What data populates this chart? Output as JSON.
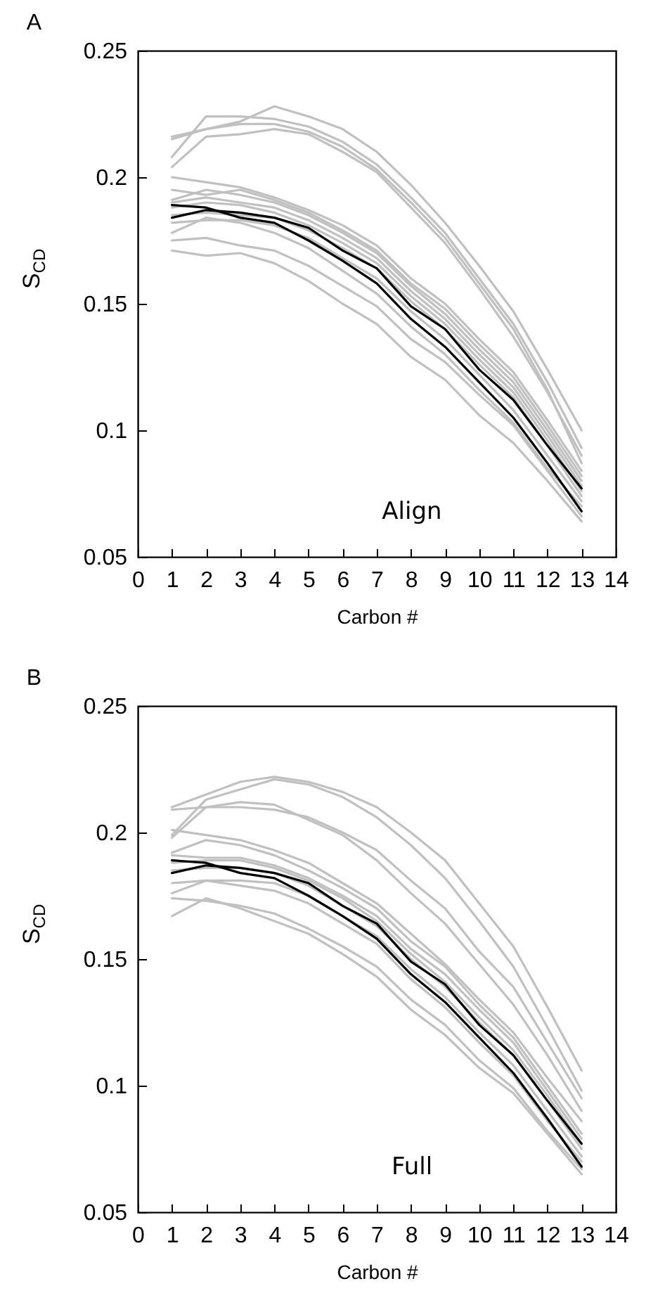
{
  "chart_data": [
    {
      "type": "line",
      "title": "A",
      "xlabel": "Carbon #",
      "ylabel": "S$_{CD}$",
      "annotations": [
        "Align"
      ],
      "x": [
        1,
        2,
        3,
        4,
        5,
        6,
        7,
        8,
        9,
        10,
        11,
        12,
        13
      ],
      "xlim": [
        0,
        14
      ],
      "xticks": [
        0,
        1,
        2,
        3,
        4,
        5,
        6,
        7,
        8,
        9,
        10,
        11,
        12,
        13,
        14
      ],
      "ylim": [
        0.05,
        0.25
      ],
      "yticks": [
        0.05,
        0.1,
        0.15,
        0.2,
        0.25
      ],
      "grid": false,
      "legend": false,
      "series": [
        {
          "color": "#c0c0c0",
          "values": [
            0.216,
            0.219,
            0.222,
            0.228,
            0.224,
            0.219,
            0.21,
            0.197,
            0.182,
            0.165,
            0.147,
            0.124,
            0.1
          ]
        },
        {
          "color": "#c0c0c0",
          "values": [
            0.208,
            0.224,
            0.224,
            0.223,
            0.22,
            0.214,
            0.205,
            0.192,
            0.178,
            0.16,
            0.142,
            0.119,
            0.093
          ]
        },
        {
          "color": "#c0c0c0",
          "values": [
            0.204,
            0.216,
            0.217,
            0.219,
            0.217,
            0.21,
            0.202,
            0.188,
            0.174,
            0.156,
            0.137,
            0.115,
            0.09
          ]
        },
        {
          "color": "#c0c0c0",
          "values": [
            0.215,
            0.219,
            0.221,
            0.221,
            0.218,
            0.212,
            0.203,
            0.19,
            0.176,
            0.158,
            0.14,
            0.116,
            0.087
          ]
        },
        {
          "color": "#c0c0c0",
          "values": [
            0.2,
            0.198,
            0.196,
            0.192,
            0.187,
            0.181,
            0.173,
            0.16,
            0.15,
            0.136,
            0.123,
            0.104,
            0.084
          ]
        },
        {
          "color": "#c0c0c0",
          "values": [
            0.195,
            0.193,
            0.195,
            0.191,
            0.186,
            0.179,
            0.171,
            0.158,
            0.148,
            0.134,
            0.121,
            0.102,
            0.082
          ]
        },
        {
          "color": "#c0c0c0",
          "values": [
            0.191,
            0.195,
            0.193,
            0.19,
            0.185,
            0.178,
            0.17,
            0.157,
            0.146,
            0.132,
            0.119,
            0.1,
            0.08
          ]
        },
        {
          "color": "#c0c0c0",
          "values": [
            0.19,
            0.192,
            0.19,
            0.188,
            0.183,
            0.176,
            0.168,
            0.155,
            0.144,
            0.13,
            0.117,
            0.098,
            0.078
          ]
        },
        {
          "color": "#c0c0c0",
          "values": [
            0.188,
            0.19,
            0.189,
            0.186,
            0.181,
            0.174,
            0.166,
            0.153,
            0.142,
            0.128,
            0.115,
            0.096,
            0.076
          ]
        },
        {
          "color": "#c0c0c0",
          "values": [
            0.185,
            0.186,
            0.185,
            0.184,
            0.179,
            0.172,
            0.164,
            0.151,
            0.14,
            0.126,
            0.113,
            0.094,
            0.074
          ]
        },
        {
          "color": "#c0c0c0",
          "values": [
            0.182,
            0.183,
            0.183,
            0.181,
            0.176,
            0.168,
            0.16,
            0.147,
            0.136,
            0.122,
            0.108,
            0.09,
            0.072
          ]
        },
        {
          "color": "#c0c0c0",
          "values": [
            0.178,
            0.184,
            0.182,
            0.178,
            0.172,
            0.163,
            0.154,
            0.141,
            0.13,
            0.116,
            0.103,
            0.085,
            0.07
          ]
        },
        {
          "color": "#c0c0c0",
          "values": [
            0.175,
            0.176,
            0.173,
            0.171,
            0.165,
            0.157,
            0.149,
            0.136,
            0.127,
            0.114,
            0.102,
            0.084,
            0.066
          ]
        },
        {
          "color": "#c0c0c0",
          "values": [
            0.171,
            0.169,
            0.17,
            0.166,
            0.159,
            0.15,
            0.142,
            0.129,
            0.12,
            0.106,
            0.095,
            0.08,
            0.064
          ]
        },
        {
          "color": "#000000",
          "values": [
            0.184,
            0.187,
            0.186,
            0.184,
            0.18,
            0.171,
            0.164,
            0.149,
            0.14,
            0.124,
            0.112,
            0.094,
            0.077
          ]
        },
        {
          "color": "#000000",
          "values": [
            0.189,
            0.188,
            0.184,
            0.182,
            0.175,
            0.167,
            0.158,
            0.144,
            0.133,
            0.119,
            0.105,
            0.087,
            0.068
          ]
        }
      ]
    },
    {
      "type": "line",
      "title": "B",
      "xlabel": "Carbon #",
      "ylabel": "S$_{CD}$",
      "annotations": [
        "Full"
      ],
      "x": [
        1,
        2,
        3,
        4,
        5,
        6,
        7,
        8,
        9,
        10,
        11,
        12,
        13
      ],
      "xlim": [
        0,
        14
      ],
      "xticks": [
        0,
        1,
        2,
        3,
        4,
        5,
        6,
        7,
        8,
        9,
        10,
        11,
        12,
        13,
        14
      ],
      "ylim": [
        0.05,
        0.25
      ],
      "yticks": [
        0.05,
        0.1,
        0.15,
        0.2,
        0.25
      ],
      "grid": false,
      "legend": false,
      "series": [
        {
          "color": "#c0c0c0",
          "values": [
            0.21,
            0.215,
            0.22,
            0.222,
            0.22,
            0.216,
            0.21,
            0.2,
            0.189,
            0.172,
            0.155,
            0.131,
            0.106
          ]
        },
        {
          "color": "#c0c0c0",
          "values": [
            0.199,
            0.213,
            0.217,
            0.221,
            0.219,
            0.214,
            0.206,
            0.195,
            0.182,
            0.165,
            0.147,
            0.123,
            0.098
          ]
        },
        {
          "color": "#c0c0c0",
          "values": [
            0.209,
            0.21,
            0.21,
            0.209,
            0.206,
            0.2,
            0.193,
            0.181,
            0.17,
            0.153,
            0.139,
            0.117,
            0.095
          ]
        },
        {
          "color": "#c0c0c0",
          "values": [
            0.198,
            0.21,
            0.212,
            0.211,
            0.205,
            0.199,
            0.189,
            0.176,
            0.164,
            0.148,
            0.132,
            0.112,
            0.09
          ]
        },
        {
          "color": "#c0c0c0",
          "values": [
            0.201,
            0.199,
            0.197,
            0.193,
            0.188,
            0.18,
            0.172,
            0.16,
            0.148,
            0.134,
            0.121,
            0.103,
            0.086
          ]
        },
        {
          "color": "#c0c0c0",
          "values": [
            0.192,
            0.197,
            0.195,
            0.191,
            0.185,
            0.178,
            0.17,
            0.157,
            0.147,
            0.132,
            0.119,
            0.1,
            0.081
          ]
        },
        {
          "color": "#c0c0c0",
          "values": [
            0.191,
            0.19,
            0.19,
            0.187,
            0.182,
            0.175,
            0.167,
            0.154,
            0.144,
            0.13,
            0.117,
            0.098,
            0.079
          ]
        },
        {
          "color": "#c0c0c0",
          "values": [
            0.188,
            0.189,
            0.189,
            0.186,
            0.181,
            0.174,
            0.165,
            0.152,
            0.141,
            0.127,
            0.114,
            0.096,
            0.077
          ]
        },
        {
          "color": "#c0c0c0",
          "values": [
            0.185,
            0.186,
            0.186,
            0.184,
            0.179,
            0.171,
            0.163,
            0.15,
            0.139,
            0.125,
            0.112,
            0.094,
            0.075
          ]
        },
        {
          "color": "#c0c0c0",
          "values": [
            0.18,
            0.181,
            0.181,
            0.18,
            0.175,
            0.167,
            0.159,
            0.146,
            0.135,
            0.121,
            0.108,
            0.09,
            0.072
          ]
        },
        {
          "color": "#c0c0c0",
          "values": [
            0.176,
            0.181,
            0.179,
            0.177,
            0.172,
            0.164,
            0.156,
            0.142,
            0.131,
            0.117,
            0.104,
            0.086,
            0.07
          ]
        },
        {
          "color": "#c0c0c0",
          "values": [
            0.174,
            0.173,
            0.171,
            0.168,
            0.162,
            0.155,
            0.147,
            0.134,
            0.124,
            0.11,
            0.099,
            0.082,
            0.067
          ]
        },
        {
          "color": "#c0c0c0",
          "values": [
            0.167,
            0.174,
            0.17,
            0.165,
            0.16,
            0.152,
            0.143,
            0.13,
            0.12,
            0.107,
            0.097,
            0.081,
            0.065
          ]
        },
        {
          "color": "#000000",
          "values": [
            0.184,
            0.187,
            0.186,
            0.184,
            0.18,
            0.171,
            0.164,
            0.149,
            0.14,
            0.124,
            0.112,
            0.094,
            0.077
          ]
        },
        {
          "color": "#000000",
          "values": [
            0.189,
            0.188,
            0.184,
            0.182,
            0.175,
            0.167,
            0.158,
            0.144,
            0.133,
            0.119,
            0.105,
            0.087,
            0.068
          ]
        }
      ]
    }
  ]
}
